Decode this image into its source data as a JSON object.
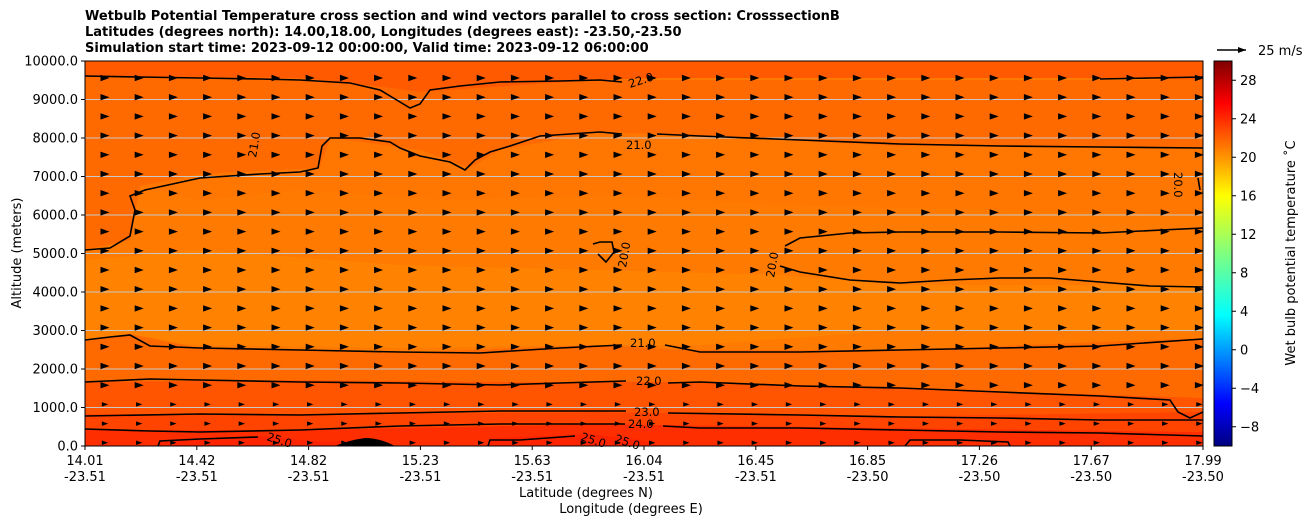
{
  "chart_data": {
    "type": "heatmap",
    "title_lines": [
      "Wetbulb Potential Temperature cross section and wind vectors parallel to cross section: CrosssectionB",
      "Latitudes (degrees north): 14.00,18.00, Longitudes (degrees east): -23.50,-23.50",
      "Simulation start time: 2023-09-12 00:00:00, Valid time: 2023-09-12 06:00:00"
    ],
    "xlabel": "Latitude (degrees N)",
    "xlabel2": "Longitude (degrees E)",
    "ylabel": "Altitude (meters)",
    "ylim": [
      0,
      10000
    ],
    "yticks": [
      "0.0",
      "1000.0",
      "2000.0",
      "3000.0",
      "4000.0",
      "5000.0",
      "6000.0",
      "7000.0",
      "8000.0",
      "9000.0",
      "10000.0"
    ],
    "xticks_lat": [
      "14.01",
      "14.42",
      "14.82",
      "15.23",
      "15.63",
      "16.04",
      "16.45",
      "16.85",
      "17.26",
      "17.67",
      "17.99"
    ],
    "xticks_lon": [
      "-23.51",
      "-23.51",
      "-23.51",
      "-23.51",
      "-23.51",
      "-23.51",
      "-23.51",
      "-23.50",
      "-23.50",
      "-23.50",
      "-23.50"
    ],
    "grid": "horizontal",
    "colorbar": {
      "label": "Wet bulb potential temperature ˚C",
      "range": [
        -10,
        30
      ],
      "colormap": "jet",
      "ticks": [
        "−8",
        "−4",
        "0",
        "4",
        "8",
        "12",
        "16",
        "20",
        "24",
        "28"
      ]
    },
    "quiver_key": {
      "label": "25 m/s",
      "value": 25
    },
    "contour_labels": [
      {
        "text": "25.0",
        "level": 25
      },
      {
        "text": "25.0",
        "level": 25
      },
      {
        "text": "25.0",
        "level": 25
      },
      {
        "text": "24.0",
        "level": 24
      },
      {
        "text": "23.0",
        "level": 23
      },
      {
        "text": "22.0",
        "level": 22
      },
      {
        "text": "21.0",
        "level": 21
      },
      {
        "text": "20.0",
        "level": 20
      },
      {
        "text": "20.0",
        "level": 20
      },
      {
        "text": "21.0",
        "level": 21
      },
      {
        "text": "21.0",
        "level": 21
      },
      {
        "text": "22.0",
        "level": 22
      },
      {
        "text": "20.0",
        "level": 20
      }
    ]
  }
}
